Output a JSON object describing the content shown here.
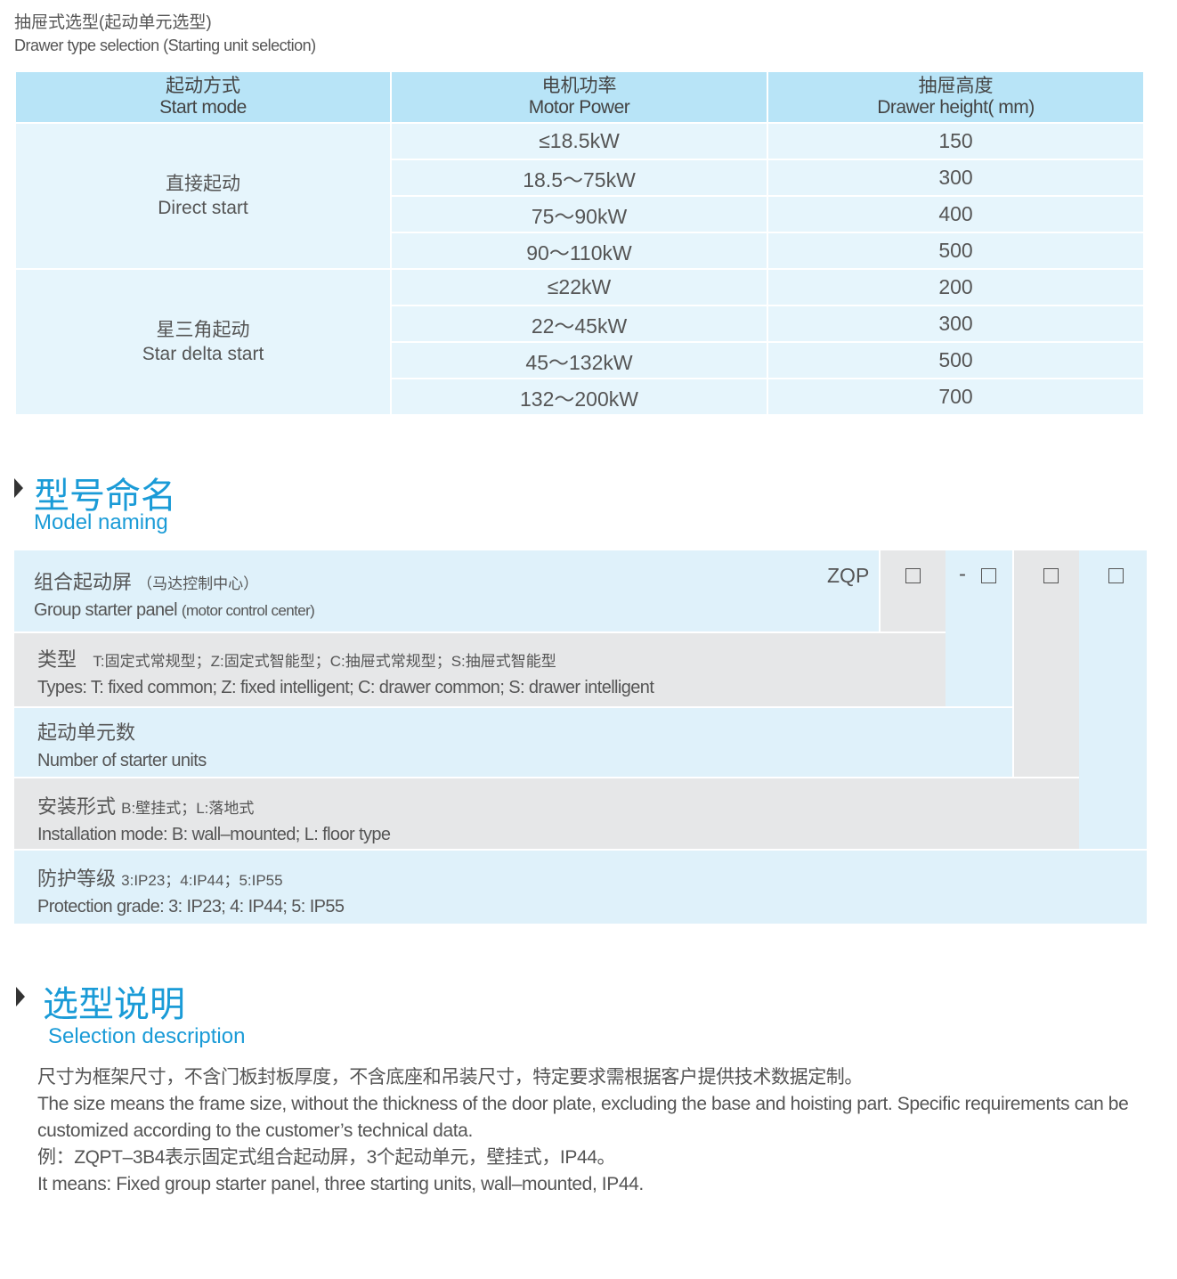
{
  "drawer_section": {
    "title_cn": "抽屉式选型(起动单元选型)",
    "title_en": "Drawer type selection (Starting unit selection)"
  },
  "table": {
    "headers": [
      {
        "cn": "起动方式",
        "en": "Start mode"
      },
      {
        "cn": "电机功率",
        "en": "Motor Power"
      },
      {
        "cn": "抽屉高度",
        "en": "Drawer height( mm)"
      }
    ],
    "groups": [
      {
        "cn": "直接起动",
        "en": "Direct start",
        "rows": [
          [
            "≤18.5kW",
            "150"
          ],
          [
            "18.5～75kW",
            "300"
          ],
          [
            "75～90kW",
            "400"
          ],
          [
            "90～110kW",
            "500"
          ]
        ]
      },
      {
        "cn": "星三角起动",
        "en": "Star delta start",
        "rows": [
          [
            "≤22kW",
            "200"
          ],
          [
            "22～45kW",
            "300"
          ],
          [
            "45～132kW",
            "500"
          ],
          [
            "132～200kW",
            "700"
          ]
        ]
      }
    ]
  },
  "model_naming": {
    "title_cn": "型号命名",
    "title_en": "Model naming",
    "prefix": "ZQP",
    "dash": "-",
    "rows": [
      {
        "cn": "组合起动屏",
        "cn_note": "（马达控制中心）",
        "en": "Group starter panel",
        "en_note": "(motor control center)"
      },
      {
        "cn": "类型",
        "cn_note": "T:固定式常规型；Z:固定式智能型；C:抽屉式常规型；S:抽屉式智能型",
        "en": "Types: T: fixed common; Z: fixed intelligent; C: drawer common; S: drawer intelligent"
      },
      {
        "cn": "起动单元数",
        "en": "Number  of  starter units"
      },
      {
        "cn": "安装形式",
        "cn_note": "B:壁挂式；L:落地式",
        "en": "Installation mode: B: wall–mounted; L: floor type"
      },
      {
        "cn": "防护等级",
        "cn_note": "3:IP23；4:IP44；5:IP55",
        "en": "Protection grade:  3: IP23; 4: IP44; 5: IP55"
      }
    ]
  },
  "selection": {
    "title_cn": "选型说明",
    "title_en": "Selection description",
    "lines": [
      "尺寸为框架尺寸，不含门板封板厚度，不含底座和吊装尺寸，特定要求需根据客户提供技术数据定制。",
      "The size means the frame size, without the thickness of the door plate, excluding the base and hoisting part. Specific requirements can be customized according to the customer’s technical data.",
      "例：ZQPT–3B4表示固定式组合起动屏，3个起动单元，壁挂式，IP44。",
      "It means: Fixed group starter panel, three starting units, wall–mounted, IP44."
    ]
  },
  "colors": {
    "accent": "#1a9bd7",
    "header": "#b8e4f7",
    "cell": "#e6f5fc",
    "gray": "#e6e7e8"
  }
}
